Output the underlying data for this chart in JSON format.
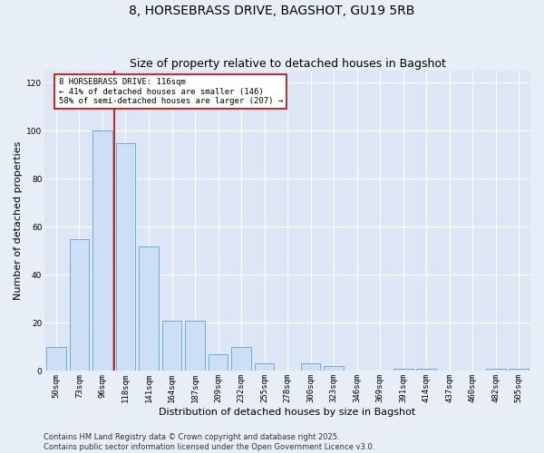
{
  "title": "8, HORSEBRASS DRIVE, BAGSHOT, GU19 5RB",
  "subtitle": "Size of property relative to detached houses in Bagshot",
  "xlabel": "Distribution of detached houses by size in Bagshot",
  "ylabel": "Number of detached properties",
  "bar_color": "#ccdff5",
  "bar_edge_color": "#6aaed6",
  "background_color": "#dce6f5",
  "fig_background_color": "#e8eef8",
  "categories": [
    "50sqm",
    "73sqm",
    "96sqm",
    "118sqm",
    "141sqm",
    "164sqm",
    "187sqm",
    "209sqm",
    "232sqm",
    "255sqm",
    "278sqm",
    "300sqm",
    "323sqm",
    "346sqm",
    "369sqm",
    "391sqm",
    "414sqm",
    "437sqm",
    "460sqm",
    "482sqm",
    "505sqm"
  ],
  "values": [
    10,
    55,
    100,
    95,
    52,
    21,
    21,
    7,
    10,
    3,
    0,
    3,
    2,
    0,
    0,
    1,
    1,
    0,
    0,
    1,
    1
  ],
  "ylim": [
    0,
    125
  ],
  "yticks": [
    0,
    20,
    40,
    60,
    80,
    100,
    120
  ],
  "property_line_x": 2.5,
  "annotation_text": "8 HORSEBRASS DRIVE: 116sqm\n← 41% of detached houses are smaller (146)\n58% of semi-detached houses are larger (207) →",
  "annotation_box_color": "#ffffff",
  "annotation_box_edge": "#cc0000",
  "vline_color": "#cc0000",
  "footer_text": "Contains HM Land Registry data © Crown copyright and database right 2025.\nContains public sector information licensed under the Open Government Licence v3.0.",
  "title_fontsize": 10,
  "subtitle_fontsize": 9,
  "xlabel_fontsize": 8,
  "ylabel_fontsize": 8,
  "tick_fontsize": 6.5,
  "annot_fontsize": 6.5,
  "footer_fontsize": 6
}
